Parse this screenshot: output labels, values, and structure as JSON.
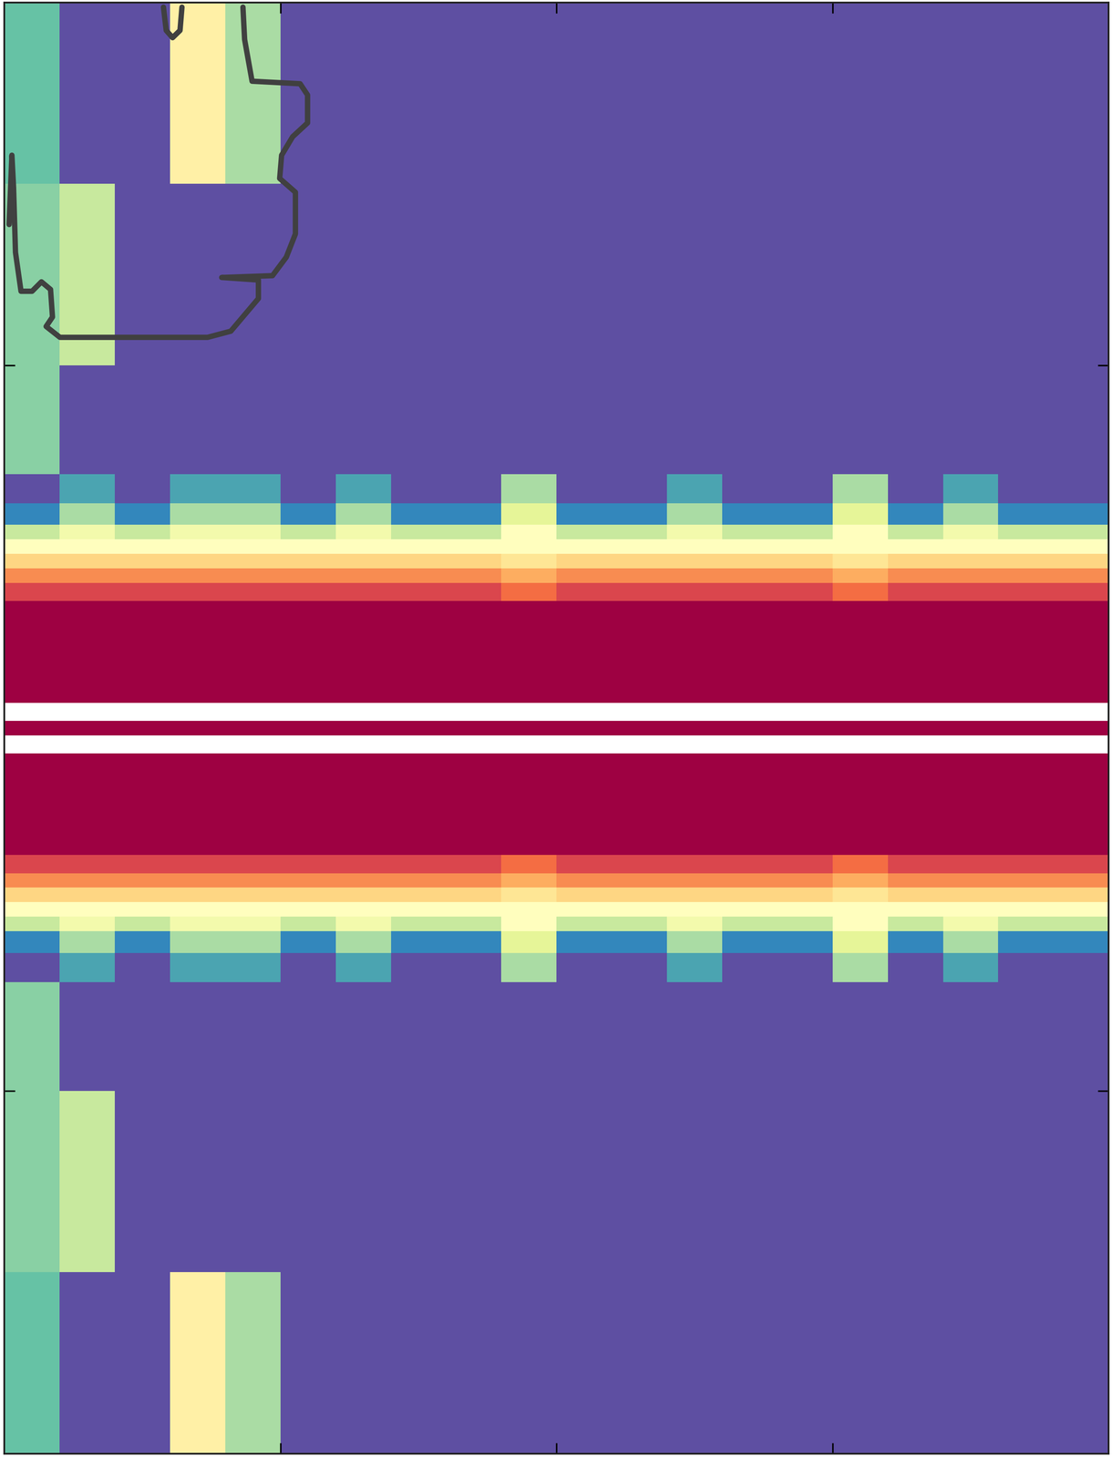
{
  "chart_data": {
    "type": "heatmap",
    "xlim": [
      0,
      4
    ],
    "ylim": [
      0,
      4
    ],
    "xticks": [
      1,
      2,
      3
    ],
    "yticks": [
      1,
      3
    ],
    "tick_labels": false,
    "color_range": [
      0,
      1
    ],
    "x_edges": [
      0,
      0.2,
      0.4,
      0.6,
      0.8,
      1.0,
      1.2,
      1.4,
      1.6,
      1.8,
      2.0,
      2.2,
      2.4,
      2.6,
      2.8,
      3.0,
      3.2,
      3.4,
      3.6,
      3.8,
      4.0
    ],
    "y_edges": [
      0,
      0.5,
      1.0,
      1.3,
      1.38,
      1.44,
      1.48,
      1.52,
      1.56,
      1.6,
      1.65,
      1.93,
      1.98,
      2.02,
      2.07,
      2.35,
      2.4,
      2.44,
      2.48,
      2.52,
      2.56,
      2.62,
      2.7,
      3.0,
      3.5,
      4.0
    ],
    "cells": [
      [
        0.2,
        0,
        0,
        0.55,
        0.3,
        0,
        0,
        0,
        0,
        0,
        0,
        0,
        0,
        0,
        0,
        0,
        0,
        0,
        0,
        0
      ],
      [
        0.25,
        0.35,
        0,
        0,
        0,
        0,
        0,
        0,
        0,
        0,
        0,
        0,
        0,
        0,
        0,
        0,
        0,
        0,
        0,
        0
      ],
      [
        0.25,
        0,
        0,
        0,
        0,
        0,
        0,
        0,
        0,
        0,
        0,
        0,
        0,
        0,
        0,
        0,
        0,
        0,
        0,
        0
      ],
      [
        0,
        0.15,
        0,
        0.15,
        0.15,
        0,
        0.15,
        0,
        0,
        0.3,
        0,
        0,
        0.15,
        0,
        0,
        0.3,
        0,
        0.15,
        0,
        0
      ],
      [
        0.1,
        0.3,
        0.1,
        0.3,
        0.3,
        0.1,
        0.3,
        0.1,
        0.1,
        0.4,
        0.1,
        0.1,
        0.3,
        0.1,
        0.1,
        0.4,
        0.1,
        0.3,
        0.1,
        0.1
      ],
      [
        0.35,
        0.45,
        0.35,
        0.45,
        0.45,
        0.35,
        0.45,
        0.35,
        0.35,
        0.5,
        0.35,
        0.35,
        0.45,
        0.35,
        0.35,
        0.5,
        0.35,
        0.45,
        0.35,
        0.35
      ],
      [
        0.5,
        0.5,
        0.5,
        0.5,
        0.5,
        0.5,
        0.5,
        0.5,
        0.5,
        0.5,
        0.5,
        0.5,
        0.5,
        0.5,
        0.5,
        0.5,
        0.5,
        0.5,
        0.5,
        0.5
      ],
      [
        0.62,
        0.62,
        0.62,
        0.62,
        0.62,
        0.62,
        0.62,
        0.62,
        0.62,
        0.58,
        0.62,
        0.62,
        0.62,
        0.62,
        0.62,
        0.58,
        0.62,
        0.62,
        0.62,
        0.62
      ],
      [
        0.75,
        0.75,
        0.75,
        0.75,
        0.75,
        0.75,
        0.75,
        0.75,
        0.75,
        0.7,
        0.75,
        0.75,
        0.75,
        0.75,
        0.75,
        0.7,
        0.75,
        0.75,
        0.75,
        0.75
      ],
      [
        0.88,
        0.88,
        0.88,
        0.88,
        0.88,
        0.88,
        0.88,
        0.88,
        0.88,
        0.8,
        0.88,
        0.88,
        0.88,
        0.88,
        0.88,
        0.8,
        0.88,
        0.88,
        0.88,
        0.88
      ],
      [
        1,
        1,
        1,
        1,
        1,
        1,
        1,
        1,
        1,
        1,
        1,
        1,
        1,
        1,
        1,
        1,
        1,
        1,
        1,
        1
      ],
      [
        null,
        null,
        null,
        null,
        null,
        null,
        null,
        null,
        null,
        null,
        null,
        null,
        null,
        null,
        null,
        null,
        null,
        null,
        null,
        null
      ],
      [
        1,
        1,
        1,
        1,
        1,
        1,
        1,
        1,
        1,
        1,
        1,
        1,
        1,
        1,
        1,
        1,
        1,
        1,
        1,
        1
      ],
      [
        null,
        null,
        null,
        null,
        null,
        null,
        null,
        null,
        null,
        null,
        null,
        null,
        null,
        null,
        null,
        null,
        null,
        null,
        null,
        null
      ],
      [
        1,
        1,
        1,
        1,
        1,
        1,
        1,
        1,
        1,
        1,
        1,
        1,
        1,
        1,
        1,
        1,
        1,
        1,
        1,
        1
      ],
      [
        0.88,
        0.88,
        0.88,
        0.88,
        0.88,
        0.88,
        0.88,
        0.88,
        0.88,
        0.8,
        0.88,
        0.88,
        0.88,
        0.88,
        0.88,
        0.8,
        0.88,
        0.88,
        0.88,
        0.88
      ],
      [
        0.75,
        0.75,
        0.75,
        0.75,
        0.75,
        0.75,
        0.75,
        0.75,
        0.75,
        0.7,
        0.75,
        0.75,
        0.75,
        0.75,
        0.75,
        0.7,
        0.75,
        0.75,
        0.75,
        0.75
      ],
      [
        0.62,
        0.62,
        0.62,
        0.62,
        0.62,
        0.62,
        0.62,
        0.62,
        0.62,
        0.58,
        0.62,
        0.62,
        0.62,
        0.62,
        0.62,
        0.58,
        0.62,
        0.62,
        0.62,
        0.62
      ],
      [
        0.5,
        0.5,
        0.5,
        0.5,
        0.5,
        0.5,
        0.5,
        0.5,
        0.5,
        0.5,
        0.5,
        0.5,
        0.5,
        0.5,
        0.5,
        0.5,
        0.5,
        0.5,
        0.5,
        0.5
      ],
      [
        0.35,
        0.45,
        0.35,
        0.45,
        0.45,
        0.35,
        0.45,
        0.35,
        0.35,
        0.5,
        0.35,
        0.35,
        0.45,
        0.35,
        0.35,
        0.5,
        0.35,
        0.45,
        0.35,
        0.35
      ],
      [
        0.1,
        0.3,
        0.1,
        0.3,
        0.3,
        0.1,
        0.3,
        0.1,
        0.1,
        0.4,
        0.1,
        0.1,
        0.3,
        0.1,
        0.1,
        0.4,
        0.1,
        0.3,
        0.1,
        0.1
      ],
      [
        0,
        0.15,
        0,
        0.15,
        0.15,
        0,
        0.15,
        0,
        0,
        0.3,
        0,
        0,
        0.15,
        0,
        0,
        0.3,
        0,
        0.15,
        0,
        0
      ],
      [
        0.25,
        0,
        0,
        0,
        0,
        0,
        0,
        0,
        0,
        0,
        0,
        0,
        0,
        0,
        0,
        0,
        0,
        0,
        0,
        0
      ],
      [
        0.25,
        0.35,
        0,
        0,
        0,
        0,
        0,
        0,
        0,
        0,
        0,
        0,
        0,
        0,
        0,
        0,
        0,
        0,
        0,
        0
      ],
      [
        0.2,
        0,
        0,
        0.55,
        0.3,
        0,
        0,
        0,
        0,
        0,
        0,
        0,
        0,
        0,
        0,
        0,
        0,
        0,
        0,
        0
      ]
    ],
    "series": [
      {
        "type": "line",
        "color": "#404040",
        "x": [
          0.864,
          0.87,
          0.897,
          1.071,
          1.098,
          1.098,
          1.044,
          1.004,
          0.997,
          1.054,
          1.054,
          1.021,
          0.971,
          0.787,
          0.92,
          0.92,
          0.82,
          0.736,
          0.201,
          0.151,
          0.174,
          0.167,
          0.134,
          0.1,
          0.06,
          0.04,
          0.033,
          0.027,
          0.017
        ],
        "y": [
          3.987,
          3.898,
          3.783,
          3.776,
          3.745,
          3.668,
          3.63,
          3.579,
          3.515,
          3.477,
          3.362,
          3.298,
          3.247,
          3.242,
          3.235,
          3.184,
          3.094,
          3.077,
          3.077,
          3.107,
          3.133,
          3.209,
          3.23,
          3.204,
          3.204,
          3.311,
          3.49,
          3.579,
          3.388
        ]
      },
      {
        "type": "line",
        "color": "#404040",
        "x": [
          0.576,
          0.586,
          0.609,
          0.636,
          0.643
        ],
        "y": [
          3.987,
          3.923,
          3.903,
          3.923,
          3.987
        ]
      }
    ]
  }
}
